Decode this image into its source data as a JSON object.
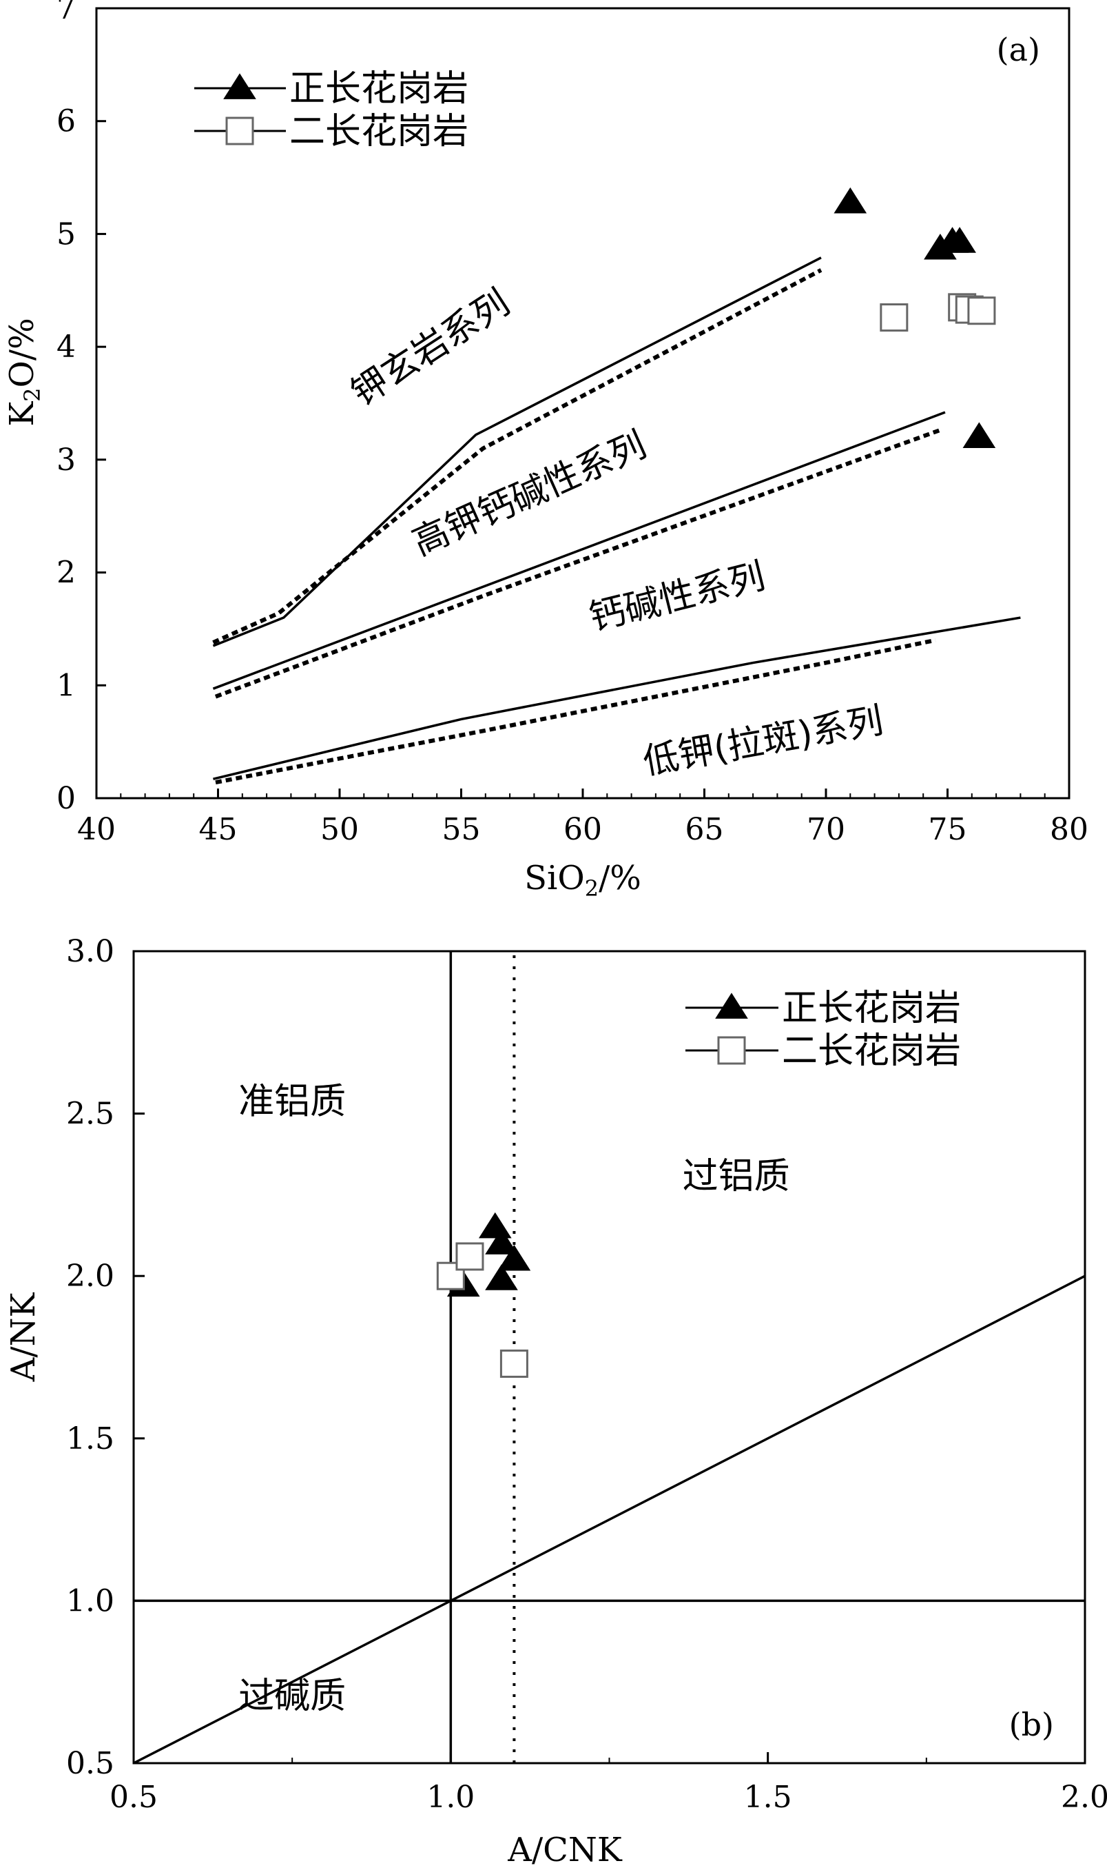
{
  "chart_data": [
    {
      "type": "scatter",
      "panel_label": "(a)",
      "xlabel": {
        "main": "SiO",
        "sub": "2",
        "rest": "/%"
      },
      "ylabel": {
        "main": "K",
        "sub": "2",
        "rest": "O/%"
      },
      "xlim": [
        40,
        80
      ],
      "ylim": [
        0,
        7
      ],
      "x_ticks": [
        "40",
        "45",
        "50",
        "55",
        "60",
        "65",
        "70",
        "75",
        "80"
      ],
      "y_ticks": [
        "0",
        "1",
        "2",
        "3",
        "4",
        "5",
        "6",
        "7"
      ],
      "legend_position": "top-left",
      "series": [
        {
          "name": "正长花岗岩",
          "marker": "filled-triangle",
          "points": [
            [
              71.0,
              5.28
            ],
            [
              74.7,
              4.87
            ],
            [
              75.2,
              4.93
            ],
            [
              75.5,
              4.93
            ],
            [
              76.3,
              3.2
            ]
          ]
        },
        {
          "name": "二长花岗岩",
          "marker": "open-square",
          "points": [
            [
              72.8,
              4.26
            ],
            [
              75.6,
              4.35
            ],
            [
              75.9,
              4.33
            ],
            [
              76.4,
              4.32
            ]
          ]
        }
      ],
      "boundaries": [
        {
          "style": "solid",
          "points": [
            [
              44.8,
              1.35
            ],
            [
              47.7,
              1.6
            ],
            [
              55.6,
              3.22
            ],
            [
              69.8,
              4.79
            ]
          ]
        },
        {
          "style": "dashed",
          "points": [
            [
              44.8,
              1.38
            ],
            [
              47.5,
              1.64
            ],
            [
              51.0,
              2.25
            ],
            [
              55.9,
              3.1
            ],
            [
              69.8,
              4.68
            ]
          ]
        },
        {
          "style": "solid",
          "points": [
            [
              44.8,
              0.97
            ],
            [
              74.9,
              3.42
            ]
          ]
        },
        {
          "style": "dashed",
          "points": [
            [
              44.9,
              0.9
            ],
            [
              56.0,
              1.8
            ],
            [
              74.8,
              3.27
            ]
          ]
        },
        {
          "style": "solid",
          "points": [
            [
              44.8,
              0.17
            ],
            [
              55.0,
              0.7
            ],
            [
              67.0,
              1.2
            ],
            [
              78.0,
              1.6
            ]
          ]
        },
        {
          "style": "dashed",
          "points": [
            [
              44.9,
              0.14
            ],
            [
              56.0,
              0.6
            ],
            [
              70.0,
              1.2
            ],
            [
              74.5,
              1.4
            ]
          ]
        }
      ],
      "series_labels": [
        {
          "text": "钾玄岩系列",
          "x": 54.0,
          "y": 3.9,
          "angle": -33
        },
        {
          "text": "高钾钙碱性系列",
          "x": 58.0,
          "y": 2.6,
          "angle": -24
        },
        {
          "text": "钙碱性系列",
          "x": 64.0,
          "y": 1.68,
          "angle": -14
        },
        {
          "text": "低钾(拉斑)系列",
          "x": 67.5,
          "y": 0.4,
          "angle": -10
        }
      ]
    },
    {
      "type": "scatter",
      "panel_label": "(b)",
      "xlabel": "A/CNK",
      "ylabel": "A/NK",
      "xlim": [
        0.5,
        2.0
      ],
      "ylim": [
        0.5,
        3.0
      ],
      "x_ticks": [
        "0.5",
        "1.0",
        "1.5",
        "2.0"
      ],
      "y_ticks": [
        "0.5",
        "1.0",
        "1.5",
        "2.0",
        "2.5",
        "3.0"
      ],
      "legend_position": "top-right",
      "series": [
        {
          "name": "正长花岗岩",
          "marker": "filled-triangle",
          "points": [
            [
              1.02,
              1.97
            ],
            [
              1.07,
              2.15
            ],
            [
              1.08,
              2.1
            ],
            [
              1.1,
              2.05
            ],
            [
              1.08,
              1.99
            ]
          ]
        },
        {
          "name": "二长花岗岩",
          "marker": "open-square",
          "points": [
            [
              1.0,
              2.0
            ],
            [
              1.03,
              2.06
            ],
            [
              1.1,
              1.73
            ]
          ]
        }
      ],
      "reference_lines": [
        {
          "style": "solid",
          "points": [
            [
              1.0,
              0.5
            ],
            [
              1.0,
              3.0
            ]
          ]
        },
        {
          "style": "solid",
          "points": [
            [
              0.5,
              1.0
            ],
            [
              2.0,
              1.0
            ]
          ]
        },
        {
          "style": "solid",
          "points": [
            [
              0.5,
              0.5
            ],
            [
              2.0,
              2.0
            ]
          ]
        },
        {
          "style": "dotted",
          "points": [
            [
              1.1,
              0.5
            ],
            [
              1.1,
              3.0
            ]
          ]
        }
      ],
      "region_labels": [
        {
          "text": "准铝质",
          "x": 0.75,
          "y": 2.5
        },
        {
          "text": "过铝质",
          "x": 1.45,
          "y": 2.27
        },
        {
          "text": "过碱质",
          "x": 0.75,
          "y": 0.67
        }
      ]
    }
  ]
}
